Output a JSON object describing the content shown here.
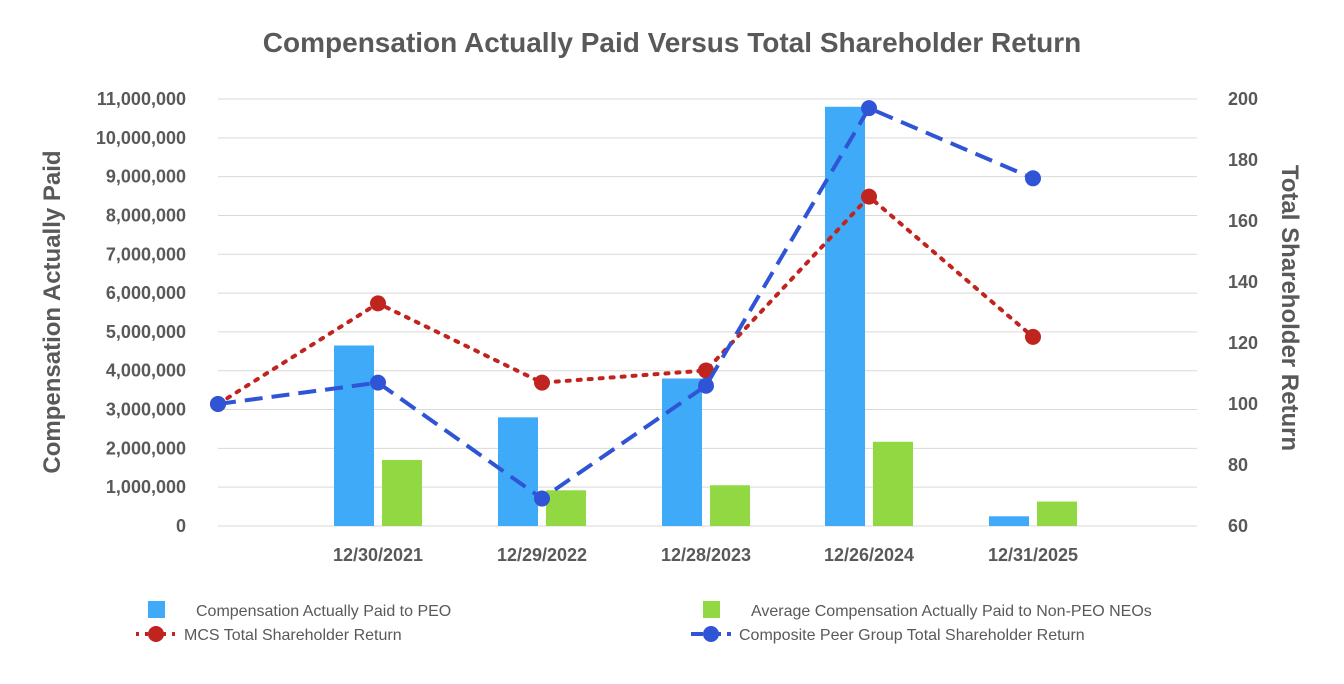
{
  "chart_data": {
    "type": "bar",
    "title": "Compensation Actually Paid Versus Total Shareholder Return",
    "ylabel_left": "Compensation Actually Paid",
    "ylabel_right": "Total Shareholder Return",
    "categories": [
      "12/30/2021",
      "12/29/2022",
      "12/28/2023",
      "12/26/2024",
      "12/31/2025"
    ],
    "ylim_left": [
      0,
      11000000
    ],
    "ylim_right": [
      60,
      200
    ],
    "yticks_left": [
      "0",
      "1,000,000",
      "2,000,000",
      "3,000,000",
      "4,000,000",
      "5,000,000",
      "6,000,000",
      "7,000,000",
      "8,000,000",
      "9,000,000",
      "10,000,000",
      "11,000,000"
    ],
    "yticks_right": [
      "60",
      "80",
      "100",
      "120",
      "140",
      "160",
      "180",
      "200"
    ],
    "grid": true,
    "legend_position": "bottom",
    "bar_series": [
      {
        "name": "Compensation Actually Paid to PEO",
        "color": "#3fabf8",
        "values": [
          4650000,
          2800000,
          3800000,
          10800000,
          250000
        ]
      },
      {
        "name": "Average Compensation Actually Paid to Non-PEO NEOs",
        "color": "#92d843",
        "values": [
          1700000,
          920000,
          1050000,
          2170000,
          630000
        ]
      }
    ],
    "line_series": [
      {
        "name": "MCS Total Shareholder Return",
        "color": "#c0241f",
        "style": "dotted",
        "points": [
          {
            "x": "start",
            "y": 100
          },
          {
            "x": "12/30/2021",
            "y": 133
          },
          {
            "x": "12/29/2022",
            "y": 107
          },
          {
            "x": "12/28/2023",
            "y": 111
          },
          {
            "x": "12/26/2024",
            "y": 168
          },
          {
            "x": "12/31/2025",
            "y": 122
          }
        ]
      },
      {
        "name": "Composite Peer Group Total Shareholder Return",
        "color": "#2f55d6",
        "style": "dashed",
        "points": [
          {
            "x": "start",
            "y": 100
          },
          {
            "x": "12/30/2021",
            "y": 107
          },
          {
            "x": "12/29/2022",
            "y": 69
          },
          {
            "x": "12/28/2023",
            "y": 106
          },
          {
            "x": "12/26/2024",
            "y": 197
          },
          {
            "x": "12/31/2025",
            "y": 174
          }
        ]
      }
    ]
  }
}
